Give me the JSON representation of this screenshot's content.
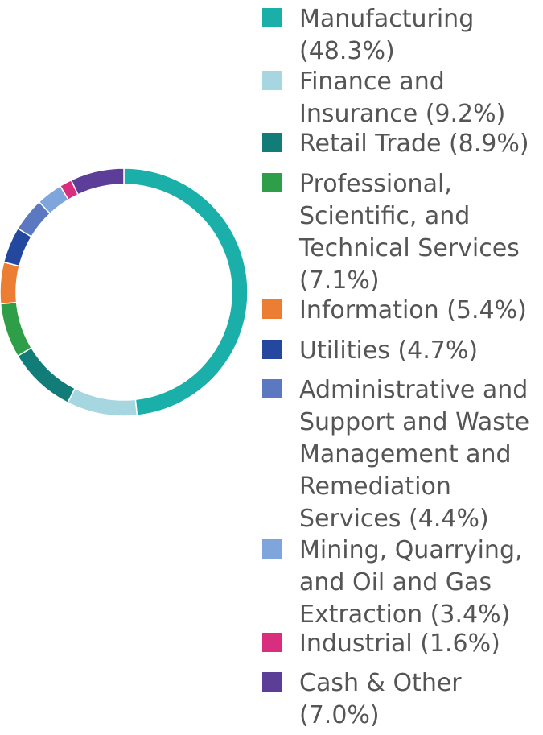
{
  "chart_data": {
    "type": "pie",
    "variant": "donut",
    "legend_position": "right",
    "categories": [
      "Manufacturing",
      "Finance and Insurance",
      "Retail Trade",
      "Professional, Scientific, and Technical Services",
      "Information",
      "Utilities",
      "Administrative and Support and Waste Management and Remediation Services",
      "Mining, Quarrying, and Oil and Gas Extraction",
      "Industrial",
      "Cash & Other"
    ],
    "values": [
      48.3,
      9.2,
      8.9,
      7.1,
      5.4,
      4.7,
      4.4,
      3.4,
      1.6,
      7.0
    ],
    "colors": [
      "#1BAFAA",
      "#A6D6E0",
      "#127C78",
      "#2E9F48",
      "#EC7E34",
      "#23489E",
      "#5B78C0",
      "#7EA6DC",
      "#D92E7E",
      "#5C3E99"
    ],
    "legend_labels": [
      "Manufacturing (48.3%)",
      "Finance and Insurance (9.2%)",
      "Retail Trade (8.9%)",
      "Professional, Scientific, and Technical Services (7.1%)",
      "Information (5.4%)",
      "Utilities (4.7%)",
      "Administrative and Support and Waste Management and Remediation Services (4.4%)",
      "Mining, Quarrying, and Oil and Gas Extraction (3.4%)",
      "Industrial (1.6%)",
      "Cash & Other (7.0%)"
    ]
  }
}
